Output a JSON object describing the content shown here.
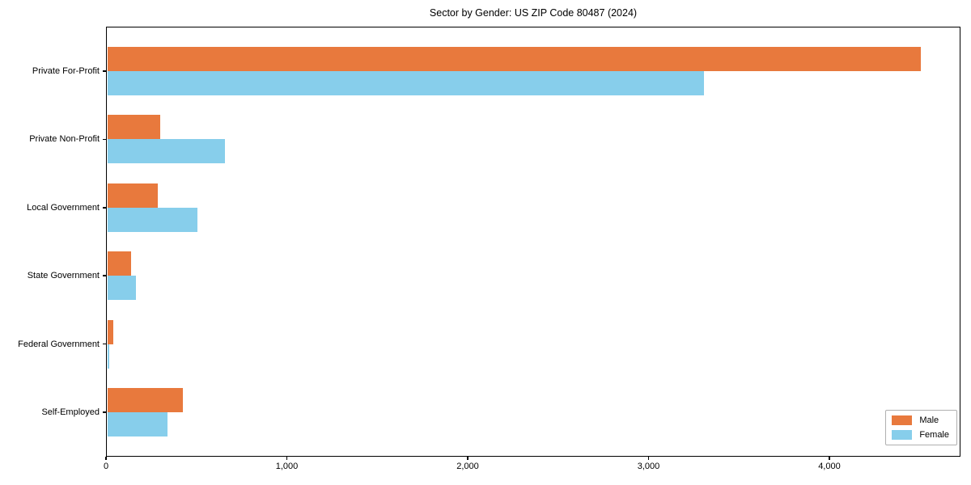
{
  "chart_data": {
    "type": "bar",
    "orientation": "horizontal",
    "title": "Sector by Gender: US ZIP Code 80487 (2024)",
    "categories": [
      "Private For-Profit",
      "Private Non-Profit",
      "Local Government",
      "State Government",
      "Federal Government",
      "Self-Employed"
    ],
    "series": [
      {
        "name": "Male",
        "color": "#e8793d",
        "values": [
          4500,
          295,
          280,
          130,
          35,
          420
        ]
      },
      {
        "name": "Female",
        "color": "#87ceeb",
        "values": [
          3300,
          650,
          500,
          160,
          10,
          335
        ]
      }
    ],
    "xlabel": "",
    "ylabel": "",
    "xlim": [
      0,
      4725
    ],
    "xticks": [
      0,
      1000,
      2000,
      3000,
      4000
    ],
    "xtick_labels": [
      "0",
      "1,000",
      "2,000",
      "3,000",
      "4,000"
    ],
    "grid": false,
    "legend_position": "lower right"
  }
}
